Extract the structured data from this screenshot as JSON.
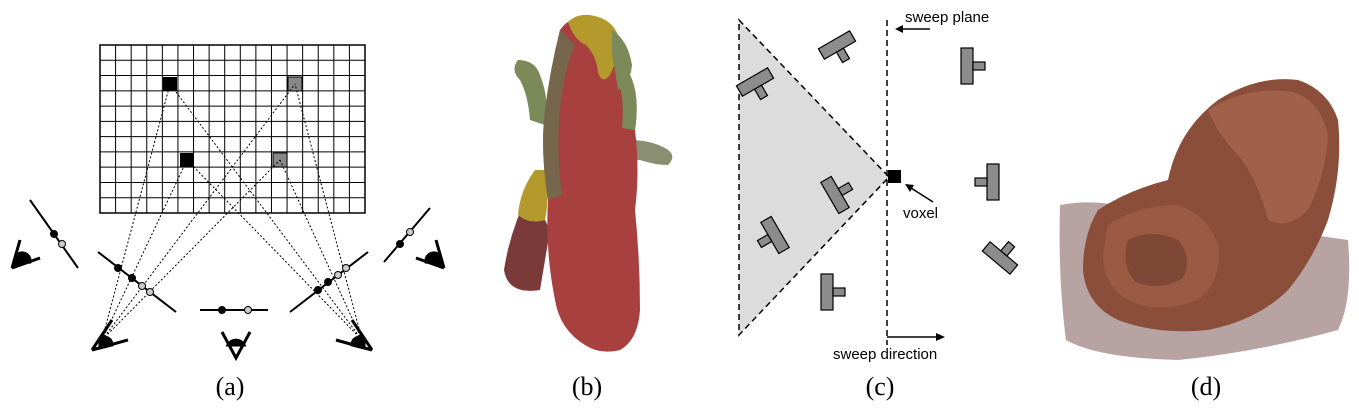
{
  "captions": {
    "a": "(a)",
    "b": "(b)",
    "c": "(c)",
    "d": "(d)"
  },
  "panel_c": {
    "sweep_plane": "sweep plane",
    "voxel": "voxel",
    "sweep_direction": "sweep direction"
  },
  "colors": {
    "dino_body": "#a8403f",
    "dino_green": "#7c8a5a",
    "dino_yellow": "#b49a2c",
    "shoe_brown": "#8a4e3a",
    "frustum_gray": "#dcdcdc",
    "camera_gray": "#8c8c8c"
  }
}
